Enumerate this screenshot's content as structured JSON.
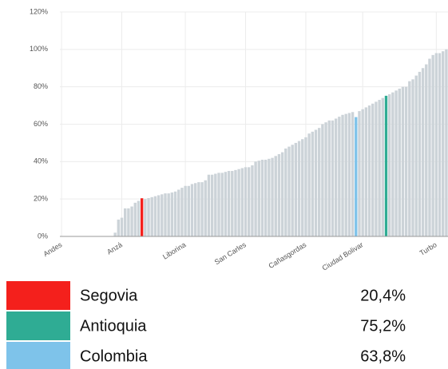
{
  "chart_data": {
    "type": "bar",
    "categories": [
      "Andes",
      null,
      null,
      null,
      null,
      null,
      null,
      null,
      null,
      null,
      null,
      null,
      null,
      null,
      null,
      null,
      null,
      null,
      "Anzá",
      null,
      null,
      null,
      null,
      null,
      null,
      null,
      null,
      null,
      null,
      null,
      null,
      null,
      null,
      null,
      null,
      null,
      null,
      "Liborina",
      null,
      null,
      null,
      null,
      null,
      null,
      null,
      null,
      null,
      null,
      null,
      null,
      null,
      null,
      null,
      null,
      null,
      "San Carles",
      null,
      null,
      null,
      null,
      null,
      null,
      null,
      null,
      null,
      null,
      null,
      null,
      null,
      null,
      null,
      null,
      null,
      "Cañasgordas",
      null,
      null,
      null,
      null,
      null,
      null,
      null,
      null,
      null,
      null,
      null,
      null,
      null,
      null,
      null,
      null,
      "Ciudad Bolivar",
      null,
      null,
      null,
      null,
      null,
      null,
      null,
      null,
      null,
      null,
      null,
      null,
      null,
      null,
      null,
      null,
      null,
      null,
      null,
      null,
      null,
      "Turbo",
      null,
      null,
      null
    ],
    "values": [
      0,
      0,
      0,
      0,
      0,
      0,
      0,
      0,
      0,
      0,
      0,
      0,
      0,
      0,
      0,
      0,
      2,
      9,
      10,
      15,
      15,
      16,
      18,
      19,
      20.4,
      20,
      20.5,
      21,
      21.5,
      22,
      22.5,
      23,
      23,
      23.5,
      24,
      25,
      26,
      27,
      27,
      28,
      28.5,
      29,
      29,
      30,
      33,
      33,
      33.5,
      34,
      34,
      34.5,
      35,
      35,
      35.5,
      36,
      36.5,
      37,
      37,
      38,
      40,
      40.5,
      41,
      41,
      41.5,
      42,
      43,
      44,
      45,
      47,
      48,
      49,
      50,
      51,
      52,
      53,
      55,
      56,
      57,
      58,
      60,
      61,
      62,
      62,
      63,
      64,
      65,
      65.5,
      66,
      66.5,
      63.8,
      67,
      68,
      69,
      70,
      71,
      72,
      73,
      74,
      75.2,
      76,
      77,
      78,
      79,
      80,
      80,
      83,
      84,
      86,
      88,
      90,
      92,
      95,
      97,
      98,
      98,
      99,
      100
    ],
    "colors": [
      "#ccd3d8",
      "#ccd3d8",
      "#ccd3d8",
      "#ccd3d8",
      "#ccd3d8",
      "#ccd3d8",
      "#ccd3d8",
      "#ccd3d8",
      "#ccd3d8",
      "#ccd3d8",
      "#ccd3d8",
      "#ccd3d8",
      "#ccd3d8",
      "#ccd3d8",
      "#ccd3d8",
      "#ccd3d8",
      "#ccd3d8",
      "#ccd3d8",
      "#ccd3d8",
      "#ccd3d8",
      "#ccd3d8",
      "#ccd3d8",
      "#ccd3d8",
      "#ccd3d8",
      "#f4201c",
      "#ccd3d8",
      "#ccd3d8",
      "#ccd3d8",
      "#ccd3d8",
      "#ccd3d8",
      "#ccd3d8",
      "#ccd3d8",
      "#ccd3d8",
      "#ccd3d8",
      "#ccd3d8",
      "#ccd3d8",
      "#ccd3d8",
      "#ccd3d8",
      "#ccd3d8",
      "#ccd3d8",
      "#ccd3d8",
      "#ccd3d8",
      "#ccd3d8",
      "#ccd3d8",
      "#ccd3d8",
      "#ccd3d8",
      "#ccd3d8",
      "#ccd3d8",
      "#ccd3d8",
      "#ccd3d8",
      "#ccd3d8",
      "#ccd3d8",
      "#ccd3d8",
      "#ccd3d8",
      "#ccd3d8",
      "#ccd3d8",
      "#ccd3d8",
      "#ccd3d8",
      "#ccd3d8",
      "#ccd3d8",
      "#ccd3d8",
      "#ccd3d8",
      "#ccd3d8",
      "#ccd3d8",
      "#ccd3d8",
      "#ccd3d8",
      "#ccd3d8",
      "#ccd3d8",
      "#ccd3d8",
      "#ccd3d8",
      "#ccd3d8",
      "#ccd3d8",
      "#ccd3d8",
      "#ccd3d8",
      "#ccd3d8",
      "#ccd3d8",
      "#ccd3d8",
      "#ccd3d8",
      "#ccd3d8",
      "#ccd3d8",
      "#ccd3d8",
      "#ccd3d8",
      "#ccd3d8",
      "#ccd3d8",
      "#ccd3d8",
      "#ccd3d8",
      "#ccd3d8",
      "#ccd3d8",
      "#7ec3ea",
      "#ccd3d8",
      "#ccd3d8",
      "#ccd3d8",
      "#ccd3d8",
      "#ccd3d8",
      "#ccd3d8",
      "#ccd3d8",
      "#ccd3d8",
      "#2fac94",
      "#ccd3d8",
      "#ccd3d8",
      "#ccd3d8",
      "#ccd3d8",
      "#ccd3d8",
      "#ccd3d8",
      "#ccd3d8",
      "#ccd3d8",
      "#ccd3d8",
      "#ccd3d8",
      "#ccd3d8",
      "#ccd3d8",
      "#ccd3d8",
      "#ccd3d8",
      "#ccd3d8",
      "#ccd3d8",
      "#ccd3d8",
      "#ccd3d8"
    ],
    "ylim": [
      0,
      120
    ],
    "yticks": [
      {
        "value": 0,
        "label": "0%"
      },
      {
        "value": 20,
        "label": "20%"
      },
      {
        "value": 40,
        "label": "40%"
      },
      {
        "value": 60,
        "label": "60%"
      },
      {
        "value": 80,
        "label": "80%"
      },
      {
        "value": 100,
        "label": "100%"
      },
      {
        "value": 120,
        "label": "120%"
      }
    ],
    "grid": true,
    "legend": [
      {
        "name": "Segovia",
        "color": "#f4201c",
        "value_label": "20,4%"
      },
      {
        "name": "Antioquia",
        "color": "#2fac94",
        "value_label": "75,2%"
      },
      {
        "name": "Colombia",
        "color": "#7ec3ea",
        "value_label": "63,8%"
      }
    ]
  }
}
